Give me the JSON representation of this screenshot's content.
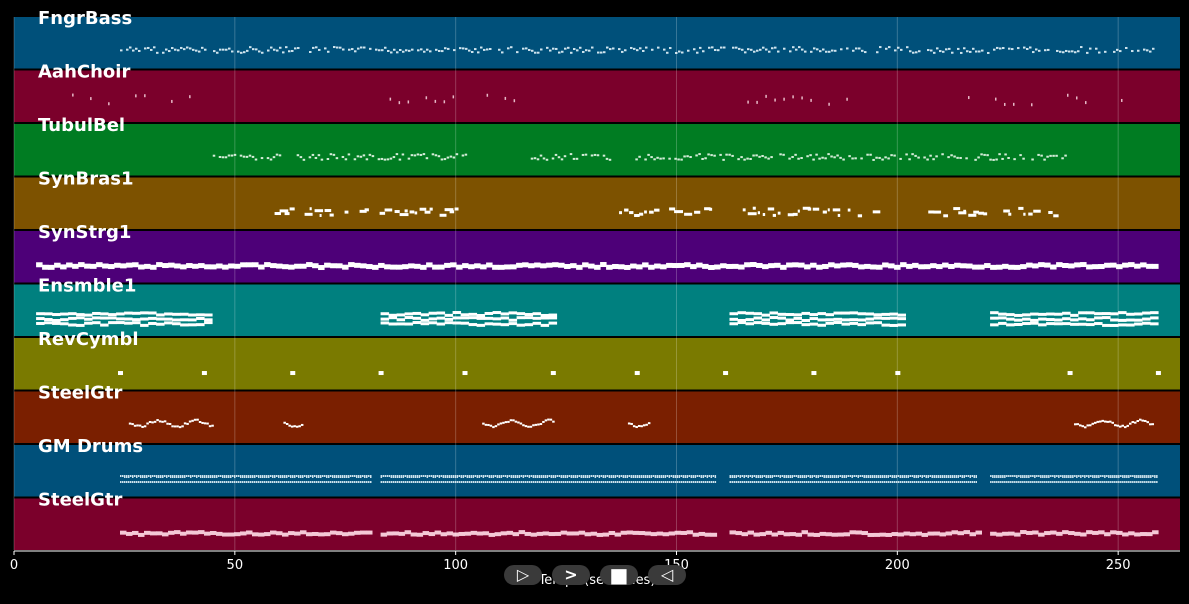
{
  "axis": {
    "xlabel": "Temps (secondes)",
    "ticks": [
      0,
      50,
      100,
      150,
      200,
      250
    ],
    "xmin": 0,
    "xmax": 264
  },
  "tracks": [
    {
      "name": "FngrBass",
      "color": "#00507a",
      "note_color": "#cfe4ee",
      "segments": [
        [
          24,
          259
        ]
      ],
      "style": "dense-thin"
    },
    {
      "name": "AahChoir",
      "color": "#7b002b",
      "note_color": "#e6b8c6",
      "segments": [
        [
          5,
          40
        ],
        [
          83,
          100
        ],
        [
          107,
          120
        ],
        [
          164,
          190
        ],
        [
          216,
          252
        ]
      ],
      "style": "sparse"
    },
    {
      "name": "TubulBel",
      "color": "#007c22",
      "note_color": "#d4ecd8",
      "segments": [
        [
          45,
          60
        ],
        [
          64,
          103
        ],
        [
          117,
          135
        ],
        [
          140,
          239
        ]
      ],
      "style": "dense-thin"
    },
    {
      "name": "SynBras1",
      "color": "#7d5200",
      "note_color": "#ffffff",
      "segments": [
        [
          59,
          100
        ],
        [
          137,
          158
        ],
        [
          165,
          195
        ],
        [
          207,
          236
        ]
      ],
      "style": "blocks"
    },
    {
      "name": "SynStrg1",
      "color": "#4d0078",
      "note_color": "#ffffff",
      "segments": [
        [
          5,
          259
        ]
      ],
      "style": "solid"
    },
    {
      "name": "Ensmble1",
      "color": "#00807f",
      "note_color": "#ffffff",
      "segments": [
        [
          5,
          44
        ],
        [
          83,
          122
        ],
        [
          162,
          201
        ],
        [
          221,
          259
        ]
      ],
      "style": "stacked"
    },
    {
      "name": "RevCymbl",
      "color": "#7a7a00",
      "note_color": "#ffffff",
      "points": [
        24,
        43,
        63,
        83,
        102,
        122,
        141,
        161,
        181,
        200,
        239,
        259
      ],
      "style": "dots"
    },
    {
      "name": "SteelGtr",
      "color": "#7a1f00",
      "note_color": "#ffffff",
      "segments": [
        [
          26,
          45
        ],
        [
          61,
          65
        ],
        [
          106,
          122
        ],
        [
          139,
          144
        ],
        [
          240,
          258
        ]
      ],
      "style": "wavy"
    },
    {
      "name": "GM Drums",
      "color": "#00507a",
      "note_color": "#cfe4ee",
      "segments": [
        [
          24,
          81
        ],
        [
          83,
          159
        ],
        [
          162,
          218
        ],
        [
          221,
          259
        ]
      ],
      "style": "drums"
    },
    {
      "name": "SteelGtr",
      "color": "#7b002b",
      "note_color": "#f4c8d6",
      "segments": [
        [
          24,
          81
        ],
        [
          83,
          159
        ],
        [
          162,
          218
        ],
        [
          221,
          259
        ]
      ],
      "style": "solid-thin"
    }
  ],
  "controls": {
    "play_label": "▷",
    "forward_label": ">",
    "stop_label": "■",
    "back_label": "◁"
  }
}
